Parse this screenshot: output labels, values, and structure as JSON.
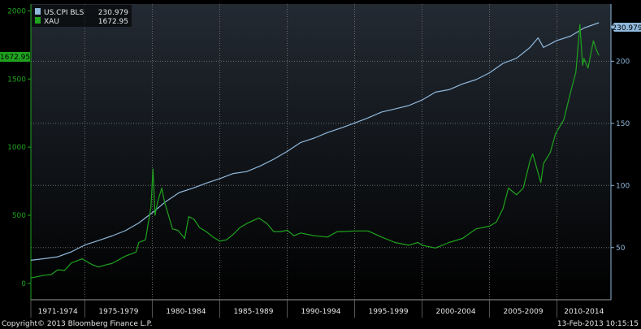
{
  "chart_data": {
    "type": "line",
    "x_tick_labels": [
      "1971-1974",
      "1975-1979",
      "1980-1984",
      "1985-1989",
      "1990-1994",
      "1995-1999",
      "2000-2004",
      "2005-2009",
      "2010-2014"
    ],
    "x_range": [
      1971.0,
      2014.0
    ],
    "left_axis": {
      "ticks": [
        0,
        500,
        1000,
        1500,
        2000
      ],
      "range": [
        -120,
        2050
      ]
    },
    "right_axis": {
      "ticks": [
        50,
        100,
        150,
        200
      ],
      "range": [
        8,
        246
      ]
    },
    "grid": true,
    "legend_position": "top-left",
    "series": [
      {
        "name": "US.CPI BLS",
        "legend_value": "230.979",
        "last_value_label": "230.979",
        "axis": "right",
        "color": "#8fb8dc",
        "x": [
          1971.0,
          1972.0,
          1973.0,
          1974.0,
          1975.0,
          1976.0,
          1977.0,
          1978.0,
          1979.0,
          1980.0,
          1981.0,
          1982.0,
          1983.0,
          1984.0,
          1985.0,
          1986.0,
          1987.0,
          1988.0,
          1989.0,
          1990.0,
          1991.0,
          1992.0,
          1993.0,
          1994.0,
          1995.0,
          1996.0,
          1997.0,
          1998.0,
          1999.0,
          2000.0,
          2001.0,
          2002.0,
          2003.0,
          2004.0,
          2005.0,
          2006.0,
          2007.0,
          2008.0,
          2008.6,
          2009.0,
          2010.0,
          2011.0,
          2012.0,
          2013.1
        ],
        "values": [
          39.8,
          41.1,
          42.6,
          46.6,
          52.1,
          55.6,
          59.3,
          63.6,
          69.8,
          78.0,
          87.0,
          94.3,
          97.8,
          101.9,
          105.5,
          109.6,
          111.2,
          115.7,
          121.1,
          127.4,
          134.6,
          138.1,
          142.6,
          146.2,
          150.3,
          154.4,
          159.1,
          161.6,
          164.3,
          168.8,
          175.1,
          177.1,
          181.7,
          185.2,
          190.7,
          198.3,
          202.4,
          211.1,
          218.8,
          211.1,
          216.7,
          220.2,
          226.7,
          230.979
        ]
      },
      {
        "name": "XAU",
        "legend_value": "1672.95",
        "last_value_label": "1672.95",
        "axis": "left",
        "color": "#1fa31f",
        "x": [
          1971.0,
          1972.0,
          1972.5,
          1973.0,
          1973.5,
          1974.0,
          1974.8,
          1975.5,
          1976.0,
          1976.7,
          1977.0,
          1978.0,
          1978.8,
          1979.0,
          1979.5,
          1979.9,
          1980.05,
          1980.2,
          1980.4,
          1980.7,
          1980.9,
          1981.2,
          1981.5,
          1981.9,
          1982.4,
          1982.7,
          1983.1,
          1983.5,
          1984.0,
          1984.5,
          1985.0,
          1985.5,
          1986.0,
          1986.5,
          1987.0,
          1987.9,
          1988.5,
          1989.0,
          1989.5,
          1990.0,
          1990.5,
          1991.0,
          1992.0,
          1993.0,
          1993.7,
          1994.0,
          1995.0,
          1996.0,
          1997.0,
          1998.0,
          1999.0,
          1999.7,
          2000.0,
          2001.0,
          2002.0,
          2003.0,
          2004.0,
          2005.0,
          2005.5,
          2006.0,
          2006.4,
          2007.0,
          2007.5,
          2008.0,
          2008.2,
          2008.8,
          2009.0,
          2009.5,
          2009.9,
          2010.5,
          2011.0,
          2011.4,
          2011.7,
          2011.9,
          2012.0,
          2012.3,
          2012.7,
          2012.9,
          2013.1
        ],
        "values": [
          40,
          60,
          65,
          100,
          95,
          150,
          180,
          140,
          120,
          140,
          145,
          200,
          230,
          300,
          320,
          560,
          840,
          500,
          600,
          700,
          600,
          500,
          400,
          390,
          330,
          490,
          470,
          410,
          380,
          340,
          310,
          320,
          360,
          410,
          440,
          480,
          440,
          380,
          380,
          390,
          350,
          370,
          350,
          340,
          380,
          380,
          385,
          385,
          340,
          300,
          280,
          300,
          280,
          260,
          300,
          330,
          400,
          420,
          450,
          550,
          700,
          650,
          700,
          900,
          950,
          740,
          880,
          960,
          1100,
          1200,
          1400,
          1550,
          1900,
          1600,
          1650,
          1580,
          1780,
          1720,
          1672.95
        ]
      }
    ]
  },
  "copyright": "Copyright© 2013 Bloomberg Finance L.P.",
  "timestamp": "13-Feb-2013 10:15:15"
}
